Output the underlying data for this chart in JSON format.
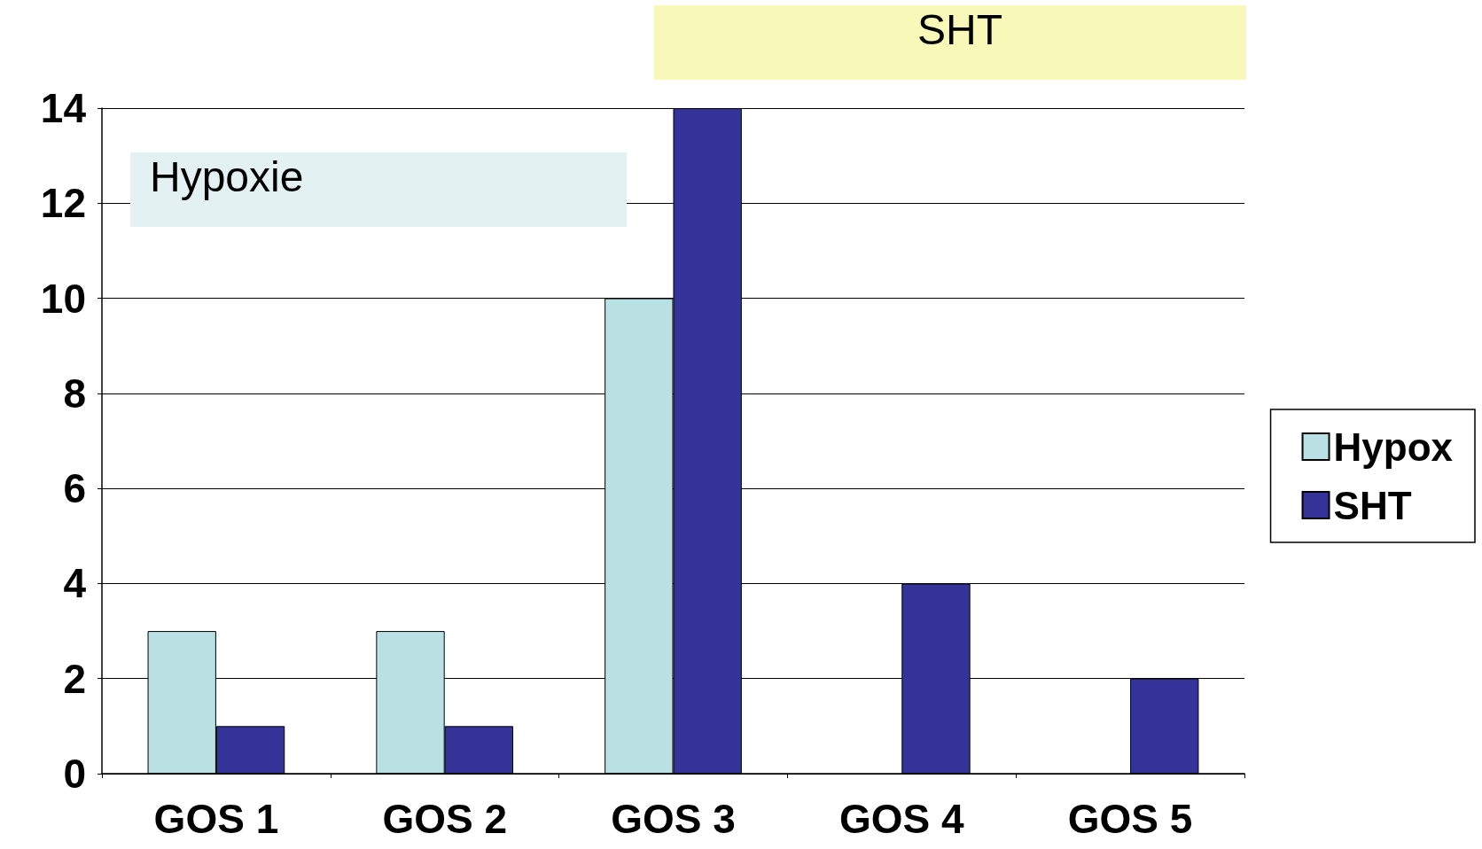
{
  "chart_data": {
    "type": "bar",
    "categories": [
      "GOS 1",
      "GOS 2",
      "GOS 3",
      "GOS 4",
      "GOS 5"
    ],
    "series": [
      {
        "name": "Hypox",
        "color": "#b9e0e3",
        "values": [
          3,
          3,
          10,
          0,
          0
        ]
      },
      {
        "name": "SHT",
        "color": "#333399",
        "values": [
          1,
          1,
          14,
          4,
          2
        ]
      }
    ],
    "ylim": [
      0,
      14
    ],
    "yticks": [
      0,
      2,
      4,
      6,
      8,
      10,
      12,
      14
    ],
    "grid": "y",
    "legend": "right",
    "annotations": [
      "Hypoxie",
      "SHT"
    ]
  }
}
